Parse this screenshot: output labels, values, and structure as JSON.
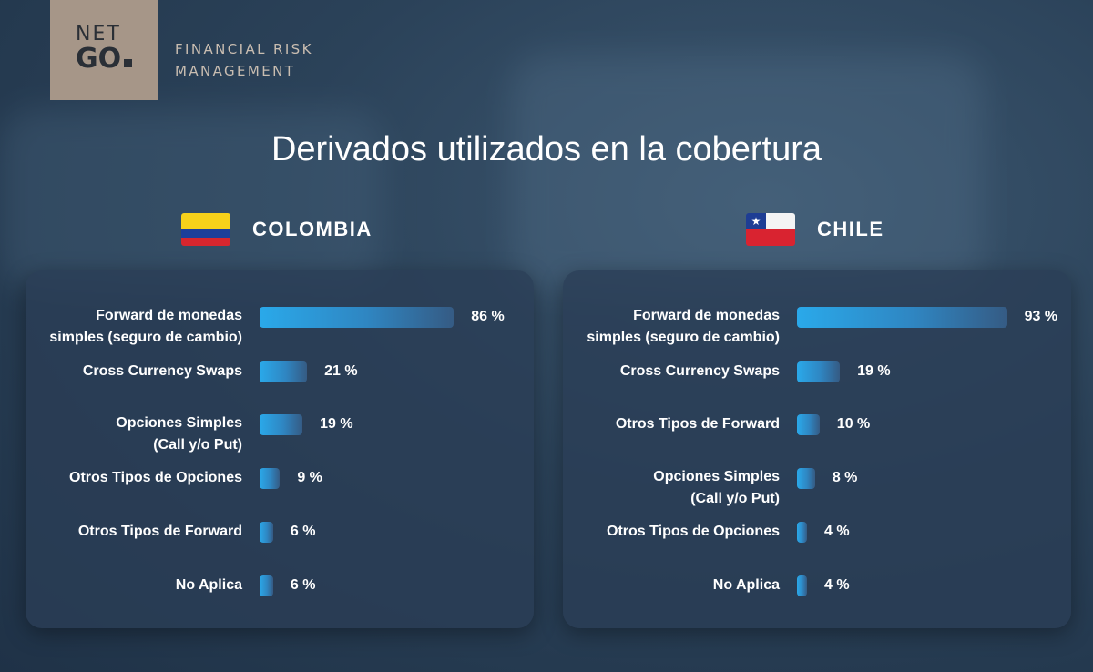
{
  "logo": {
    "line1": "NET",
    "line2": "GO",
    "tagline1": "FINANCIAL RISK",
    "tagline2": "MANAGEMENT"
  },
  "title": "Derivados utilizados en la cobertura",
  "chart_data": [
    {
      "type": "bar",
      "title": "COLOMBIA",
      "flag": "colombia-flag-icon",
      "categories": [
        "Forward de monedas simples (seguro de cambio)",
        "Cross Currency Swaps",
        "Opciones Simples (Call y/o Put)",
        "Otros Tipos de Opciones",
        "Otros Tipos de Forward",
        "No Aplica"
      ],
      "category_lines": [
        [
          "Forward de monedas",
          "simples (seguro de cambio)"
        ],
        [
          "Cross Currency Swaps"
        ],
        [
          "Opciones Simples",
          "(Call y/o Put)"
        ],
        [
          "Otros Tipos de Opciones"
        ],
        [
          "Otros Tipos de Forward"
        ],
        [
          "No Aplica"
        ]
      ],
      "values": [
        86,
        21,
        19,
        9,
        6,
        6
      ],
      "value_labels": [
        "86 %",
        "21 %",
        "19 %",
        "9 %",
        "6 %",
        "6 %"
      ],
      "unit": "%",
      "xlim": [
        0,
        100
      ]
    },
    {
      "type": "bar",
      "title": "CHILE",
      "flag": "chile-flag-icon",
      "categories": [
        "Forward de monedas simples (seguro de cambio)",
        "Cross Currency Swaps",
        "Otros Tipos de Forward",
        "Opciones Simples (Call y/o Put)",
        "Otros Tipos de Opciones",
        "No Aplica"
      ],
      "category_lines": [
        [
          "Forward de monedas",
          "simples (seguro de cambio)"
        ],
        [
          "Cross Currency Swaps"
        ],
        [
          "Otros Tipos de Forward"
        ],
        [
          "Opciones Simples",
          "(Call y/o Put)"
        ],
        [
          "Otros Tipos de Opciones"
        ],
        [
          "No Aplica"
        ]
      ],
      "values": [
        93,
        19,
        10,
        8,
        4,
        4
      ],
      "value_labels": [
        "93 %",
        "19 %",
        "10 %",
        "8 %",
        "4 %",
        "4 %"
      ],
      "unit": "%",
      "xlim": [
        0,
        100
      ]
    }
  ],
  "colors": {
    "bar_start": "#2aa9ea",
    "bar_end": "#355b84",
    "logo_bg": "#a69688"
  }
}
